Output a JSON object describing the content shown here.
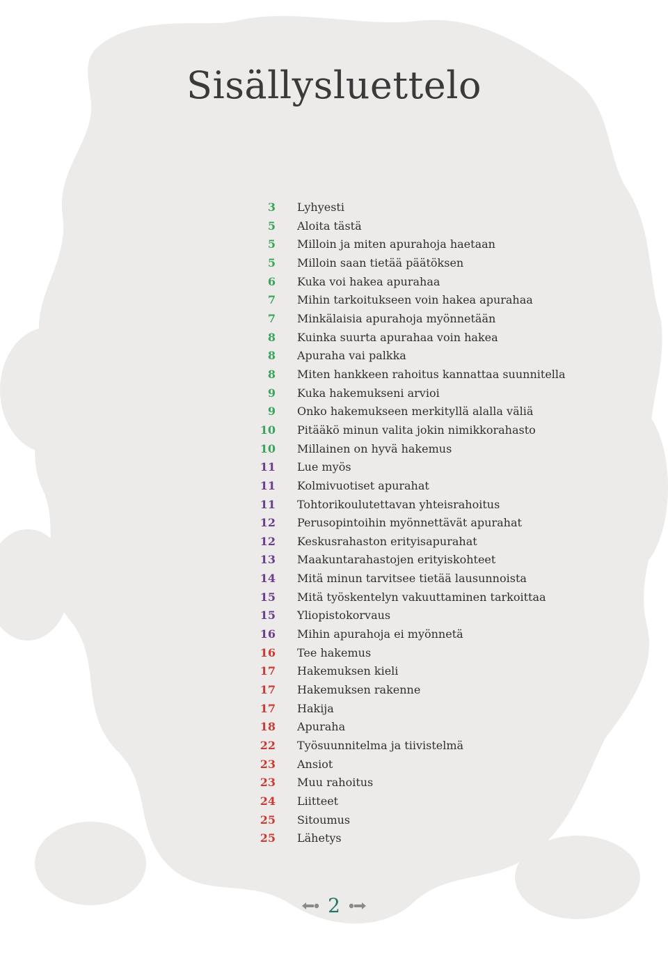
{
  "page": {
    "title": "Sisällysluettelo",
    "page_number": "2"
  },
  "colors": {
    "green": "#3aa55a",
    "purple": "#6a3d8e",
    "red": "#cc3b33",
    "text": "#2f2f2f",
    "page_number": "#1f7566",
    "ornament": "#8a8a8a",
    "background_shape": "#ecebe9"
  },
  "icons": {
    "footer_left": "left-arrow-ornament-icon",
    "footer_right": "right-arrow-ornament-icon"
  },
  "toc": [
    {
      "page": "3",
      "title": "Lyhyesti",
      "color": "green"
    },
    {
      "page": "5",
      "title": "Aloita tästä",
      "color": "green"
    },
    {
      "page": "5",
      "title": "Milloin ja miten apurahoja haetaan",
      "color": "green"
    },
    {
      "page": "5",
      "title": "Milloin saan tietää päätöksen",
      "color": "green"
    },
    {
      "page": "6",
      "title": "Kuka voi hakea apurahaa",
      "color": "green"
    },
    {
      "page": "7",
      "title": "Mihin tarkoitukseen voin hakea apurahaa",
      "color": "green"
    },
    {
      "page": "7",
      "title": "Minkälaisia apurahoja myönnetään",
      "color": "green"
    },
    {
      "page": "8",
      "title": "Kuinka suurta apurahaa voin hakea",
      "color": "green"
    },
    {
      "page": "8",
      "title": "Apuraha vai palkka",
      "color": "green"
    },
    {
      "page": "8",
      "title": "Miten hankkeen rahoitus kannattaa suunnitella",
      "color": "green"
    },
    {
      "page": "9",
      "title": "Kuka hakemukseni arvioi",
      "color": "green"
    },
    {
      "page": "9",
      "title": "Onko hakemukseen merkityllä alalla väliä",
      "color": "green"
    },
    {
      "page": "10",
      "title": "Pitääkö minun valita jokin nimikkorahasto",
      "color": "green"
    },
    {
      "page": "10",
      "title": "Millainen on hyvä hakemus",
      "color": "green"
    },
    {
      "page": "11",
      "title": "Lue myös",
      "color": "purple"
    },
    {
      "page": "11",
      "title": "Kolmivuotiset apurahat",
      "color": "purple"
    },
    {
      "page": "11",
      "title": "Tohtorikoulutettavan yhteisrahoitus",
      "color": "purple"
    },
    {
      "page": "12",
      "title": "Perusopintoihin myönnettävät apurahat",
      "color": "purple"
    },
    {
      "page": "12",
      "title": "Keskusrahaston erityisapurahat",
      "color": "purple"
    },
    {
      "page": "13",
      "title": "Maakuntarahastojen erityiskohteet",
      "color": "purple"
    },
    {
      "page": "14",
      "title": "Mitä minun tarvitsee tietää lausunnoista",
      "color": "purple"
    },
    {
      "page": "15",
      "title": "Mitä työskentelyn vakuuttaminen tarkoittaa",
      "color": "purple"
    },
    {
      "page": "15",
      "title": "Yliopistokorvaus",
      "color": "purple"
    },
    {
      "page": "16",
      "title": "Mihin apurahoja ei myönnetä",
      "color": "purple"
    },
    {
      "page": "16",
      "title": "Tee hakemus",
      "color": "red"
    },
    {
      "page": "17",
      "title": "Hakemuksen kieli",
      "color": "red"
    },
    {
      "page": "17",
      "title": "Hakemuksen rakenne",
      "color": "red"
    },
    {
      "page": "17",
      "title": "Hakija",
      "color": "red"
    },
    {
      "page": "18",
      "title": "Apuraha",
      "color": "red"
    },
    {
      "page": "22",
      "title": "Työsuunnitelma ja tiivistelmä",
      "color": "red"
    },
    {
      "page": "23",
      "title": "Ansiot",
      "color": "red"
    },
    {
      "page": "23",
      "title": "Muu rahoitus",
      "color": "red"
    },
    {
      "page": "24",
      "title": "Liitteet",
      "color": "red"
    },
    {
      "page": "25",
      "title": "Sitoumus",
      "color": "red"
    },
    {
      "page": "25",
      "title": "Lähetys",
      "color": "red"
    }
  ]
}
